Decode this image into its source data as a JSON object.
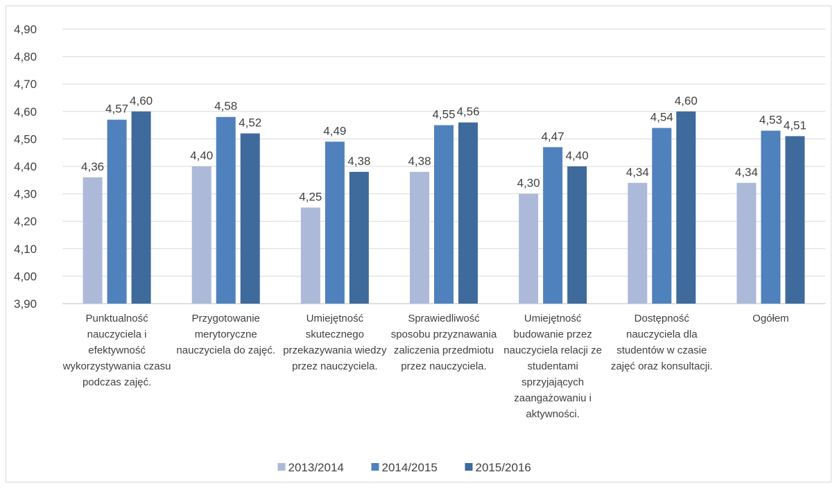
{
  "chart_data": {
    "type": "bar",
    "categories": [
      "Punktualność nauczyciela i efektywność wykorzystywania czasu podczas zajęć.",
      "Przygotowanie merytoryczne nauczyciela do zajęć.",
      "Umiejętność skutecznego przekazywania wiedzy przez nauczyciela.",
      "Sprawiedliwość sposobu przyznawania zaliczenia przedmiotu przez nauczyciela.",
      "Umiejętność budowanie przez nauczyciela relacji ze studentami sprzyjających zaangażowaniu i aktywności.",
      "Dostępność nauczyciela dla studentów w czasie zajęć oraz konsultacji.",
      "Ogółem"
    ],
    "series": [
      {
        "name": "2013/2014",
        "color": "#adb9d9",
        "values": [
          4.36,
          4.4,
          4.25,
          4.38,
          4.3,
          4.34,
          4.34
        ],
        "value_labels": [
          "4,36",
          "4,40",
          "4,25",
          "4,38",
          "4,30",
          "4,34",
          "4,34"
        ]
      },
      {
        "name": "2014/2015",
        "color": "#4f81bd",
        "values": [
          4.57,
          4.58,
          4.49,
          4.55,
          4.47,
          4.54,
          4.53
        ],
        "value_labels": [
          "4,57",
          "4,58",
          "4,49",
          "4,55",
          "4,47",
          "4,54",
          "4,53"
        ]
      },
      {
        "name": "2015/2016",
        "color": "#3e6a9c",
        "values": [
          4.6,
          4.52,
          4.38,
          4.56,
          4.4,
          4.6,
          4.51
        ],
        "value_labels": [
          "4,60",
          "4,52",
          "4,38",
          "4,56",
          "4,40",
          "4,60",
          "4,51"
        ]
      }
    ],
    "ylim": [
      3.9,
      4.9
    ],
    "yticks": [
      {
        "value": 3.9,
        "label": "3,90"
      },
      {
        "value": 4.0,
        "label": "4,00"
      },
      {
        "value": 4.1,
        "label": "4,10"
      },
      {
        "value": 4.2,
        "label": "4,20"
      },
      {
        "value": 4.3,
        "label": "4,30"
      },
      {
        "value": 4.4,
        "label": "4,40"
      },
      {
        "value": 4.5,
        "label": "4,50"
      },
      {
        "value": 4.6,
        "label": "4,60"
      },
      {
        "value": 4.7,
        "label": "4,70"
      },
      {
        "value": 4.8,
        "label": "4,80"
      },
      {
        "value": 4.9,
        "label": "4,90"
      }
    ],
    "grid": true,
    "legend": "bottom"
  }
}
